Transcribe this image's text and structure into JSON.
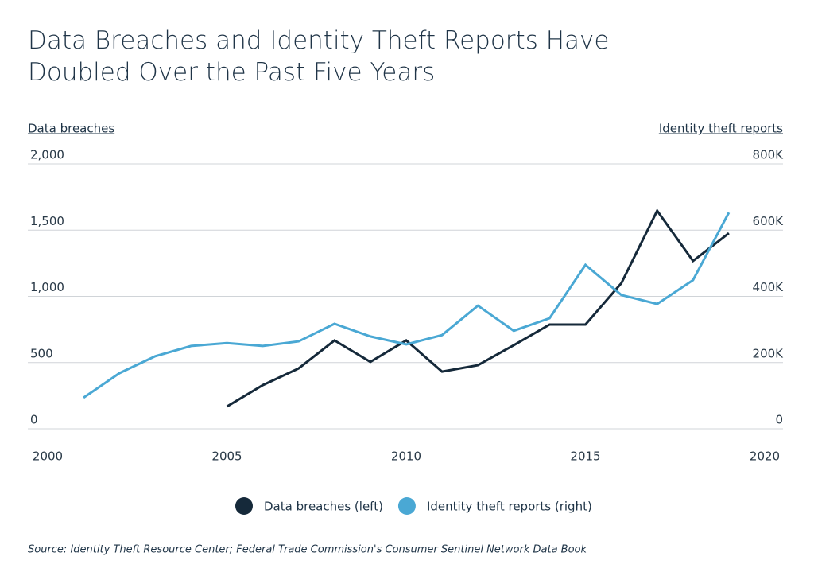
{
  "chart_data": {
    "type": "line",
    "title": "Data Breaches and Identity Theft Reports Have Doubled Over the Past Five Years",
    "y_label": "Data breaches",
    "y2_label": "Identity theft reports",
    "source": "Source: Identity Theft Resource Center; Federal Trade Commission's Consumer Sentinel Network Data Book",
    "x": [
      2001,
      2002,
      2003,
      2004,
      2005,
      2006,
      2007,
      2008,
      2009,
      2010,
      2011,
      2012,
      2013,
      2014,
      2015,
      2016,
      2017,
      2018,
      2019
    ],
    "xlim": [
      2000,
      2020
    ],
    "xticks": [
      2000,
      2005,
      2010,
      2015,
      2020
    ],
    "ylim": [
      0,
      2000
    ],
    "yticks": [
      0,
      500,
      {
        "value": 1000,
        "label": "1,000"
      },
      {
        "value": 1500,
        "label": "1,500"
      },
      {
        "value": 2000,
        "label": "2,000"
      }
    ],
    "y2lim": [
      0,
      800000
    ],
    "y2ticks": [
      0,
      {
        "value": 200000,
        "label": "200K"
      },
      {
        "value": 400000,
        "label": "400K"
      },
      {
        "value": 600000,
        "label": "600K"
      },
      {
        "value": 800000,
        "label": "800K"
      }
    ],
    "grid": true,
    "series": [
      {
        "name": "Data breaches (left)",
        "color": "#15293a",
        "values": [
          null,
          null,
          null,
          null,
          168,
          330,
          456,
          667,
          505,
          667,
          432,
          480,
          631,
          787,
          787,
          1099,
          1646,
          1267,
          1477
        ]
      },
      {
        "name": "Identity theft reports (right)",
        "color": "#4aa8d4",
        "axis": "y2",
        "values": [
          94000,
          168000,
          219000,
          250000,
          259000,
          250000,
          264000,
          317000,
          279000,
          255000,
          283000,
          372000,
          296000,
          334000,
          495000,
          404000,
          377000,
          449000,
          653000
        ]
      }
    ]
  }
}
